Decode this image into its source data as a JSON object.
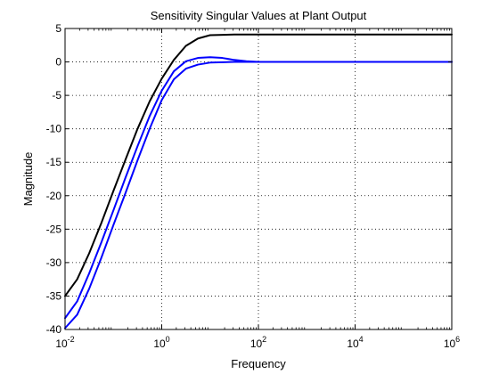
{
  "chart_data": {
    "type": "line",
    "title": "Sensitivity Singular Values at Plant Output",
    "xlabel": "Frequency",
    "ylabel": "Magnitude",
    "x_scale": "log",
    "xlim": [
      0.01,
      1000000
    ],
    "ylim": [
      -40,
      5
    ],
    "x_ticks": [
      {
        "value": 0.01,
        "base": "10",
        "exp": "-2"
      },
      {
        "value": 1,
        "base": "10",
        "exp": "0"
      },
      {
        "value": 100,
        "base": "10",
        "exp": "2"
      },
      {
        "value": 10000,
        "base": "10",
        "exp": "4"
      },
      {
        "value": 1000000,
        "base": "10",
        "exp": "6"
      }
    ],
    "y_ticks": [
      {
        "value": 5,
        "label": "5"
      },
      {
        "value": 0,
        "label": "0"
      },
      {
        "value": -5,
        "label": "-5"
      },
      {
        "value": -10,
        "label": "-10"
      },
      {
        "value": -15,
        "label": "-15"
      },
      {
        "value": -20,
        "label": "-20"
      },
      {
        "value": -25,
        "label": "-25"
      },
      {
        "value": -30,
        "label": "-30"
      },
      {
        "value": -35,
        "label": "-35"
      },
      {
        "value": -40,
        "label": "-40"
      }
    ],
    "grid": true,
    "grid_style": "dotted",
    "series": [
      {
        "color": "#000000",
        "x": [
          0.01,
          0.0178,
          0.0316,
          0.0562,
          0.1,
          0.178,
          0.316,
          0.562,
          1,
          1.78,
          3.16,
          5.62,
          10,
          31.6,
          100,
          1000,
          10000,
          100000,
          1000000
        ],
        "y": [
          -35.0,
          -32.5,
          -28.6,
          -24.1,
          -19.3,
          -14.6,
          -10.0,
          -5.9,
          -2.5,
          0.3,
          2.4,
          3.5,
          4.0,
          4.1,
          4.1,
          4.1,
          4.1,
          4.1,
          4.1
        ]
      },
      {
        "color": "#0000ff",
        "x": [
          0.01,
          0.0178,
          0.0316,
          0.0562,
          0.1,
          0.178,
          0.316,
          0.562,
          1,
          1.78,
          3.16,
          5.62,
          10,
          17.8,
          31.6,
          56.2,
          100,
          1000,
          10000,
          100000,
          1000000
        ],
        "y": [
          -38.3,
          -35.8,
          -31.6,
          -27.0,
          -22.2,
          -17.3,
          -12.6,
          -8.1,
          -4.3,
          -1.4,
          0.1,
          0.6,
          0.7,
          0.6,
          0.3,
          0.1,
          0.0,
          0.0,
          0.0,
          0.0,
          0.0
        ]
      },
      {
        "color": "#0000ff",
        "x": [
          0.01,
          0.0178,
          0.0316,
          0.0562,
          0.1,
          0.178,
          0.316,
          0.562,
          1,
          1.78,
          3.16,
          5.62,
          10,
          31.6,
          100,
          1000,
          10000,
          100000,
          1000000
        ],
        "y": [
          -39.8,
          -37.8,
          -33.9,
          -29.3,
          -24.4,
          -19.6,
          -14.7,
          -10.0,
          -5.7,
          -2.6,
          -1.0,
          -0.4,
          -0.1,
          0.0,
          0.0,
          0.0,
          0.0,
          0.0,
          0.0
        ]
      }
    ]
  }
}
